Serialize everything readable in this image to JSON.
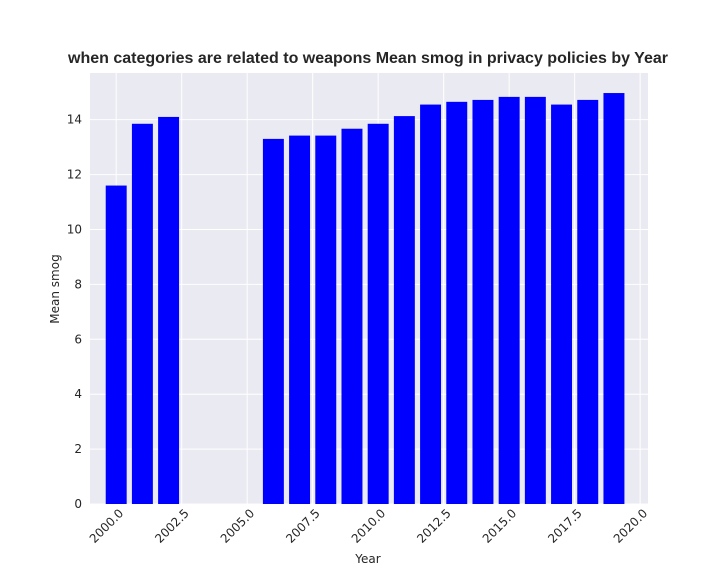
{
  "chart_data": {
    "type": "bar",
    "title": "when categories are related to weapons Mean smog in privacy policies by Year",
    "xlabel": "Year",
    "ylabel": "Mean smog",
    "bar_color": "#0000ff",
    "background_color": "#eaeaf2",
    "grid": true,
    "xlim": [
      1999.0,
      2020.3
    ],
    "ylim": [
      0,
      15.7
    ],
    "x_ticks": [
      2000.0,
      2002.5,
      2005.0,
      2007.5,
      2010.0,
      2012.5,
      2015.0,
      2017.5,
      2020.0
    ],
    "x_tick_labels": [
      "2000.0",
      "2002.5",
      "2005.0",
      "2007.5",
      "2010.0",
      "2012.5",
      "2015.0",
      "2017.5",
      "2020.0"
    ],
    "y_ticks": [
      0,
      2,
      4,
      6,
      8,
      10,
      12,
      14
    ],
    "y_tick_labels": [
      "0",
      "2",
      "4",
      "6",
      "8",
      "10",
      "12",
      "14"
    ],
    "bar_width": 0.8,
    "x": [
      2000,
      2001,
      2002,
      2006,
      2007,
      2008,
      2009,
      2010,
      2011,
      2012,
      2013,
      2014,
      2015,
      2016,
      2017,
      2018,
      2019
    ],
    "values": [
      11.6,
      13.85,
      14.1,
      13.3,
      13.42,
      13.42,
      13.67,
      13.85,
      14.13,
      14.55,
      14.65,
      14.72,
      14.83,
      14.83,
      14.55,
      14.72,
      14.97
    ]
  }
}
